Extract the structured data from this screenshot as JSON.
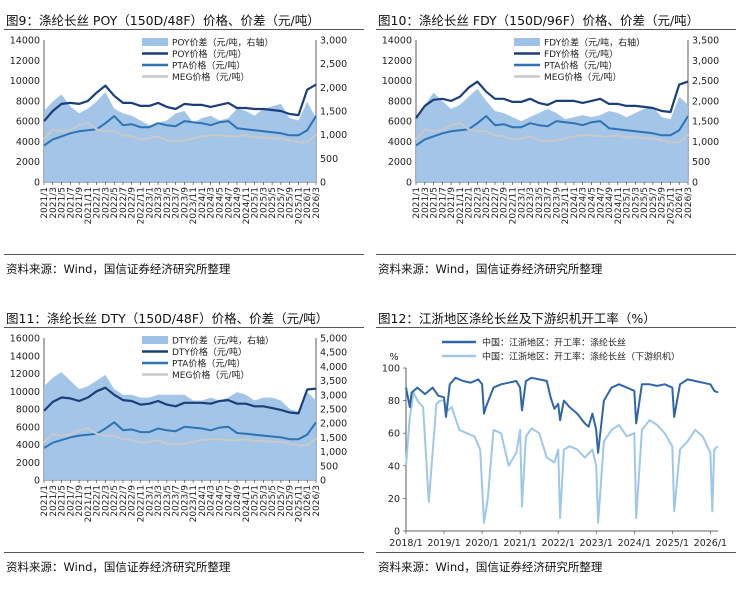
{
  "source_note": "资料来源：Wind，国信证券经济研究所整理",
  "colors": {
    "spread": "#9ec2e6",
    "dark": "#1c3f7a",
    "mid": "#2e74b5",
    "light": "#c9c9c9",
    "op1": "#2f66a8",
    "op2": "#9fc7e8"
  },
  "chart_data": [
    {
      "type": "area+line",
      "title": "图9：涤纶长丝 POY（150D/48F）价格、价差（元/吨）",
      "x_ticks": [
        "2021/1",
        "2021/3",
        "2021/5",
        "2021/7",
        "2021/9",
        "2021/11",
        "2022/1",
        "2022/3",
        "2022/5",
        "2022/7",
        "2022/9",
        "2022/11",
        "2023/1",
        "2023/3",
        "2023/5",
        "2023/7",
        "2023/9",
        "2023/11",
        "2024/1",
        "2024/3",
        "2024/5",
        "2024/7",
        "2024/9",
        "2024/11",
        "2025/1",
        "2025/3",
        "2025/5",
        "2025/7",
        "2025/9",
        "2025/11",
        "2026/1",
        "2026/3"
      ],
      "y_left_ticks": [
        "0",
        "2000",
        "4000",
        "6000",
        "8000",
        "10000",
        "12000",
        "14000"
      ],
      "y_left_range": [
        0,
        14000
      ],
      "y_right_ticks": [
        "0",
        "500",
        "1,000",
        "1,500",
        "2,000",
        "2,500",
        "3,000"
      ],
      "y_right_range": [
        0,
        3000
      ],
      "series": [
        {
          "name": "POY价差（元/吨，右轴）",
          "kind": "area",
          "axis": "right",
          "values": [
            1500,
            1700,
            1850,
            1600,
            1450,
            1550,
            1700,
            1900,
            1550,
            1450,
            1400,
            1300,
            1200,
            1250,
            1300,
            1450,
            1500,
            1250,
            1350,
            1400,
            1300,
            1350,
            1550,
            1500,
            1400,
            1550,
            1600,
            1650,
            1350,
            1300,
            1700,
            1350
          ]
        },
        {
          "name": "POY价格（元/吨）",
          "kind": "line",
          "axis": "left",
          "values": [
            6000,
            7000,
            7700,
            7800,
            7700,
            8000,
            8800,
            9500,
            8500,
            7800,
            7800,
            7500,
            7500,
            7800,
            7400,
            7200,
            7700,
            7600,
            7600,
            7400,
            7600,
            7800,
            7300,
            7300,
            7200,
            7200,
            7100,
            7000,
            6700,
            6600,
            9100,
            9600
          ]
        },
        {
          "name": "PTA价格（元/吨）",
          "kind": "line",
          "axis": "left",
          "values": [
            3600,
            4200,
            4500,
            4800,
            5000,
            5100,
            5200,
            5800,
            6500,
            5600,
            5700,
            5400,
            5400,
            5800,
            5600,
            5500,
            6000,
            5900,
            5800,
            5600,
            5900,
            6000,
            5300,
            5200,
            5100,
            5000,
            4900,
            4800,
            4600,
            4600,
            5100,
            6500
          ]
        },
        {
          "name": "MEG价格（元/吨）",
          "kind": "line",
          "axis": "left",
          "values": [
            4200,
            5200,
            5000,
            5100,
            5600,
            5800,
            5200,
            5000,
            5000,
            4600,
            4500,
            4200,
            4300,
            4500,
            4100,
            4000,
            4100,
            4300,
            4500,
            4600,
            4600,
            4500,
            4500,
            4600,
            4400,
            4400,
            4300,
            4300,
            4100,
            3900,
            3900,
            4700
          ]
        }
      ]
    },
    {
      "type": "area+line",
      "title": "图10：涤纶长丝 FDY（150D/96F）价格、价差（元/吨）",
      "x_ticks": [
        "2021/1",
        "2021/3",
        "2021/5",
        "2021/7",
        "2021/9",
        "2021/11",
        "2022/1",
        "2022/3",
        "2022/5",
        "2022/7",
        "2022/9",
        "2022/11",
        "2023/1",
        "2023/3",
        "2023/5",
        "2023/7",
        "2023/9",
        "2023/11",
        "2024/1",
        "2024/3",
        "2024/5",
        "2024/7",
        "2024/9",
        "2024/11",
        "2025/1",
        "2025/3",
        "2025/5",
        "2025/7",
        "2025/9",
        "2025/11",
        "2026/1",
        "2026/3"
      ],
      "y_left_ticks": [
        "0",
        "2000",
        "4000",
        "6000",
        "8000",
        "10000",
        "12000",
        "14000"
      ],
      "y_left_range": [
        0,
        14000
      ],
      "y_right_ticks": [
        "0",
        "500",
        "1,000",
        "1,500",
        "2,000",
        "2,500",
        "3,000",
        "3,500"
      ],
      "y_right_range": [
        0,
        3500
      ],
      "series": [
        {
          "name": "FDY价差（元/吨，右轴）",
          "kind": "area",
          "axis": "right",
          "values": [
            1600,
            1900,
            2200,
            2000,
            1800,
            1900,
            2100,
            2300,
            2000,
            1750,
            1700,
            1600,
            1500,
            1600,
            1700,
            1800,
            1700,
            1550,
            1600,
            1650,
            1600,
            1650,
            1750,
            1700,
            1600,
            1700,
            1800,
            1850,
            1600,
            1550,
            2100,
            1900
          ]
        },
        {
          "name": "FDY价格（元/吨）",
          "kind": "line",
          "axis": "left",
          "values": [
            6300,
            7500,
            8100,
            8200,
            8000,
            8400,
            9300,
            9900,
            8900,
            8200,
            8200,
            7900,
            7900,
            8200,
            7800,
            7600,
            8000,
            8000,
            8000,
            7800,
            8000,
            8200,
            7700,
            7700,
            7500,
            7500,
            7400,
            7300,
            7000,
            6900,
            9600,
            9900
          ]
        },
        {
          "name": "PTA价格（元/吨）",
          "kind": "line",
          "axis": "left",
          "values": [
            3600,
            4200,
            4500,
            4800,
            5000,
            5100,
            5200,
            5800,
            6500,
            5600,
            5700,
            5400,
            5400,
            5800,
            5600,
            5500,
            6000,
            5900,
            5800,
            5600,
            5900,
            6000,
            5300,
            5200,
            5100,
            5000,
            4900,
            4800,
            4600,
            4600,
            5100,
            6500
          ]
        },
        {
          "name": "MEG价格（元/吨）",
          "kind": "line",
          "axis": "left",
          "values": [
            4200,
            5200,
            5000,
            5100,
            5600,
            5800,
            5200,
            5000,
            5000,
            4600,
            4500,
            4200,
            4300,
            4500,
            4100,
            4000,
            4100,
            4300,
            4500,
            4600,
            4600,
            4500,
            4500,
            4600,
            4400,
            4400,
            4300,
            4300,
            4100,
            3900,
            3900,
            4700
          ]
        }
      ]
    },
    {
      "type": "area+line",
      "title": "图11：涤纶长丝 DTY（150D/48F）价格、价差（元/吨）",
      "x_ticks": [
        "2021/1",
        "2021/3",
        "2021/5",
        "2021/7",
        "2021/9",
        "2021/11",
        "2022/1",
        "2022/3",
        "2022/5",
        "2022/7",
        "2022/9",
        "2022/11",
        "2023/1",
        "2023/3",
        "2023/5",
        "2023/7",
        "2023/9",
        "2023/11",
        "2024/1",
        "2024/3",
        "2024/5",
        "2024/7",
        "2024/9",
        "2024/11",
        "2025/1",
        "2025/3",
        "2025/5",
        "2025/7",
        "2025/9",
        "2025/11",
        "2026/1",
        "2026/3"
      ],
      "y_left_ticks": [
        "0",
        "2000",
        "4000",
        "6000",
        "8000",
        "10000",
        "12000",
        "14000",
        "16000"
      ],
      "y_left_range": [
        0,
        16000
      ],
      "y_right_ticks": [
        "0",
        "500",
        "1,000",
        "1,500",
        "2,000",
        "2,500",
        "3,000",
        "3,500",
        "4,000",
        "4,500",
        "5,000"
      ],
      "y_right_range": [
        0,
        5000
      ],
      "series": [
        {
          "name": "DTY价差（元/吨，右轴）",
          "kind": "area",
          "axis": "right",
          "values": [
            3300,
            3600,
            3800,
            3500,
            3200,
            3300,
            3500,
            3700,
            3200,
            3000,
            3000,
            2900,
            2900,
            3000,
            3000,
            3000,
            3000,
            2800,
            2800,
            2900,
            2800,
            2900,
            3100,
            3000,
            2800,
            2900,
            2900,
            2800,
            2500,
            2400,
            3100,
            2800
          ]
        },
        {
          "name": "DTY价格（元/吨）",
          "kind": "line",
          "axis": "left",
          "values": [
            7800,
            8800,
            9300,
            9200,
            8900,
            9300,
            10000,
            10400,
            9600,
            9000,
            8900,
            8500,
            8600,
            8900,
            8500,
            8300,
            8700,
            8700,
            8700,
            8600,
            8900,
            9000,
            8600,
            8600,
            8300,
            8300,
            8100,
            7900,
            7600,
            7500,
            10200,
            10300
          ]
        },
        {
          "name": "PTA价格（元/吨）",
          "kind": "line",
          "axis": "left",
          "values": [
            3600,
            4200,
            4500,
            4800,
            5000,
            5100,
            5200,
            5800,
            6500,
            5600,
            5700,
            5400,
            5400,
            5800,
            5600,
            5500,
            6000,
            5900,
            5800,
            5600,
            5900,
            6000,
            5300,
            5200,
            5100,
            5000,
            4900,
            4800,
            4600,
            4600,
            5100,
            6500
          ]
        },
        {
          "name": "MEG价格（元/吨）",
          "kind": "line",
          "axis": "left",
          "values": [
            4200,
            5200,
            5000,
            5100,
            5600,
            5800,
            5200,
            5000,
            5000,
            4600,
            4500,
            4200,
            4300,
            4500,
            4100,
            4000,
            4100,
            4300,
            4500,
            4600,
            4600,
            4500,
            4500,
            4600,
            4400,
            4400,
            4300,
            4300,
            4100,
            3900,
            3900,
            4700
          ]
        }
      ]
    },
    {
      "type": "line",
      "title": "图12：江浙地区涤纶长丝及下游织机开工率（%）",
      "y_unit": "%",
      "x_ticks": [
        "2018/1",
        "2019/1",
        "2020/1",
        "2021/1",
        "2022/1",
        "2023/1",
        "2024/1",
        "2025/1",
        "2026/1"
      ],
      "x_range": [
        2018.0,
        2026.2
      ],
      "y_ticks": [
        "0",
        "20",
        "40",
        "60",
        "80",
        "100"
      ],
      "y_range": [
        0,
        100
      ],
      "series": [
        {
          "name": "中国：江浙地区：开工率：涤纶长丝",
          "kind": "line",
          "x": [
            2018.0,
            2018.1,
            2018.15,
            2018.3,
            2018.5,
            2018.7,
            2018.85,
            2019.0,
            2019.05,
            2019.15,
            2019.3,
            2019.5,
            2019.7,
            2019.9,
            2020.0,
            2020.05,
            2020.1,
            2020.2,
            2020.3,
            2020.5,
            2020.7,
            2020.9,
            2021.0,
            2021.05,
            2021.15,
            2021.3,
            2021.5,
            2021.7,
            2021.8,
            2021.9,
            2022.0,
            2022.05,
            2022.15,
            2022.3,
            2022.5,
            2022.7,
            2022.8,
            2022.9,
            2023.0,
            2023.05,
            2023.2,
            2023.4,
            2023.6,
            2023.8,
            2024.0,
            2024.05,
            2024.2,
            2024.4,
            2024.6,
            2024.8,
            2025.0,
            2025.05,
            2025.2,
            2025.4,
            2025.6,
            2025.8,
            2026.0,
            2026.1,
            2026.2
          ],
          "values": [
            88,
            76,
            85,
            88,
            84,
            88,
            83,
            82,
            70,
            90,
            94,
            92,
            91,
            93,
            90,
            72,
            76,
            82,
            88,
            90,
            91,
            92,
            88,
            74,
            92,
            94,
            93,
            92,
            82,
            75,
            78,
            68,
            80,
            76,
            72,
            66,
            64,
            72,
            62,
            48,
            80,
            88,
            90,
            88,
            86,
            66,
            90,
            90,
            89,
            90,
            88,
            70,
            90,
            93,
            92,
            91,
            90,
            86,
            85
          ]
        },
        {
          "name": "中国：江浙地区：开工率：涤纶长丝（下游织机）",
          "kind": "line",
          "x": [
            2018.0,
            2018.1,
            2018.2,
            2018.3,
            2018.45,
            2018.6,
            2018.8,
            2018.9,
            2019.0,
            2019.1,
            2019.2,
            2019.4,
            2019.6,
            2019.8,
            2019.95,
            2020.05,
            2020.15,
            2020.3,
            2020.5,
            2020.7,
            2020.9,
            2021.0,
            2021.05,
            2021.15,
            2021.3,
            2021.5,
            2021.7,
            2021.9,
            2022.0,
            2022.05,
            2022.15,
            2022.3,
            2022.5,
            2022.7,
            2022.9,
            2023.0,
            2023.05,
            2023.2,
            2023.4,
            2023.6,
            2023.8,
            2024.0,
            2024.05,
            2024.2,
            2024.4,
            2024.6,
            2024.8,
            2025.0,
            2025.05,
            2025.2,
            2025.4,
            2025.6,
            2025.8,
            2026.0,
            2026.05,
            2026.1,
            2026.2
          ],
          "values": [
            40,
            70,
            85,
            80,
            76,
            18,
            78,
            80,
            80,
            74,
            76,
            62,
            60,
            58,
            50,
            5,
            20,
            62,
            60,
            40,
            48,
            62,
            15,
            58,
            63,
            60,
            45,
            42,
            50,
            8,
            50,
            52,
            50,
            45,
            50,
            40,
            5,
            55,
            62,
            65,
            58,
            60,
            8,
            62,
            68,
            65,
            60,
            52,
            12,
            50,
            55,
            62,
            58,
            48,
            12,
            50,
            52
          ]
        }
      ]
    }
  ]
}
